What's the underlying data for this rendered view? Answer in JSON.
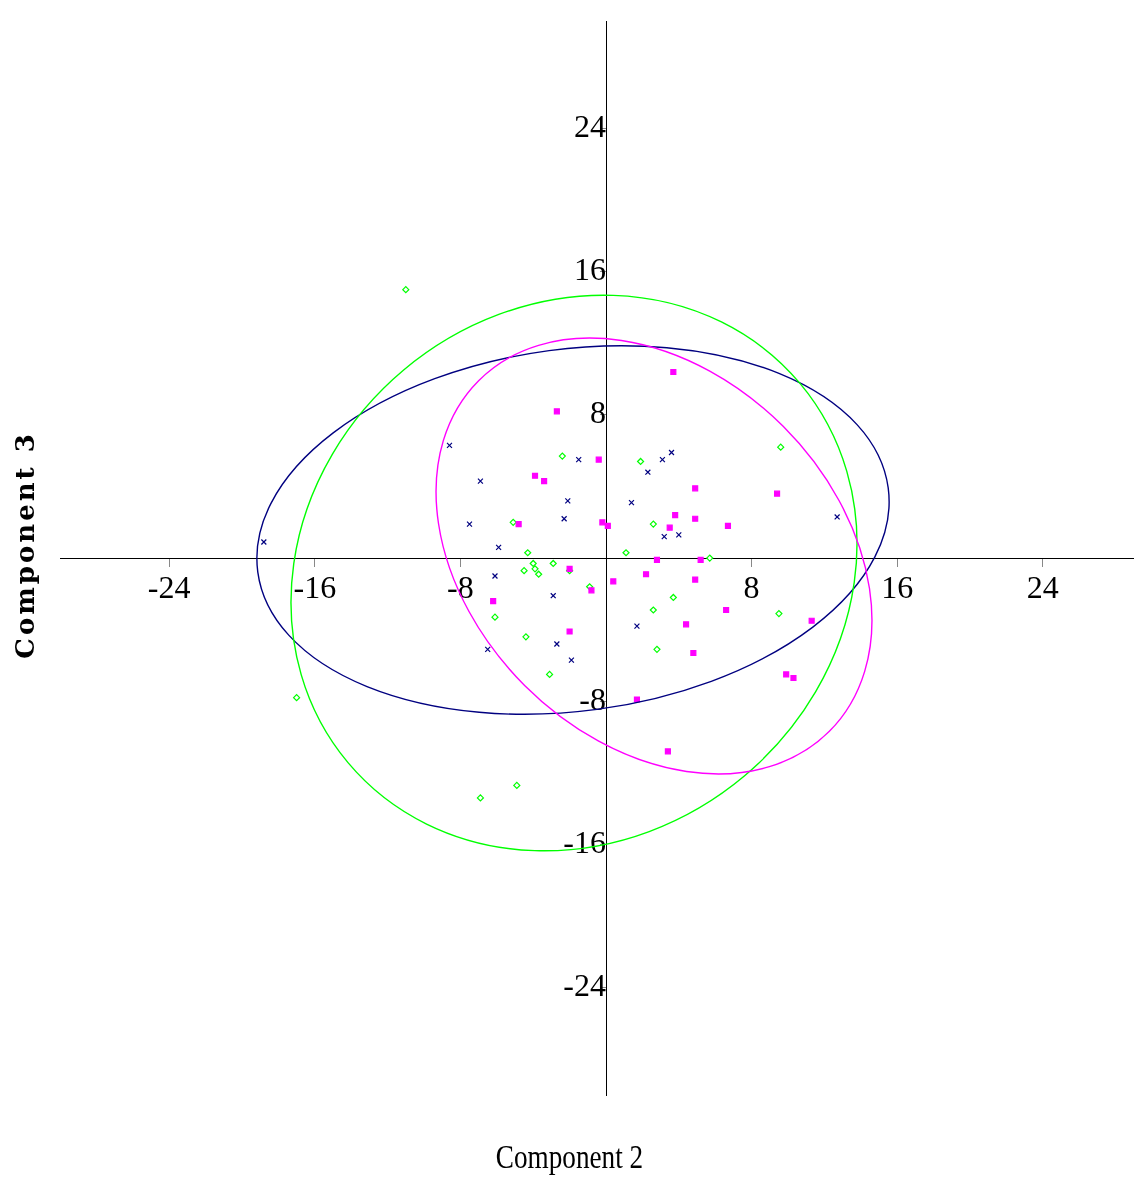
{
  "chart_data": {
    "type": "scatter",
    "xlabel": "Component 2",
    "ylabel": "Component 3",
    "xlim": [
      -30,
      29
    ],
    "ylim": [
      -30,
      30
    ],
    "xticks": [
      -24,
      -16,
      -8,
      8,
      16,
      24
    ],
    "yticks": [
      -24,
      -16,
      -8,
      8,
      16,
      24
    ],
    "grid": false,
    "legend": false,
    "series": [
      {
        "type": "scatter",
        "marker": "cross",
        "color": "#000080",
        "x": [
          -18.8,
          -8.6,
          -6.9,
          -7.5,
          -5.9,
          -6.1,
          -6.5,
          -2.1,
          -2.3,
          -1.5,
          -2.9,
          -2.7,
          -1.9,
          1.4,
          2.3,
          3.1,
          3.6,
          3.2,
          4.0,
          1.7,
          12.7
        ],
        "values": [
          0.9,
          6.3,
          4.3,
          1.9,
          0.6,
          -1.0,
          -5.1,
          3.2,
          2.2,
          5.5,
          -2.1,
          -4.8,
          -5.7,
          3.1,
          4.8,
          5.5,
          5.9,
          1.2,
          1.3,
          -3.8,
          2.3
        ]
      },
      {
        "type": "scatter",
        "marker": "square",
        "color": "#ff00ff",
        "x": [
          -2.7,
          -3.9,
          -3.4,
          -4.8,
          -0.4,
          -0.2,
          0.1,
          -2.0,
          -0.8,
          -6.2,
          -2.0,
          3.7,
          4.9,
          3.8,
          3.5,
          4.9,
          6.7,
          9.4,
          2.8,
          5.2,
          2.2,
          0.4,
          4.9,
          4.4,
          4.8,
          6.6,
          11.3,
          9.9,
          10.3,
          1.7,
          3.4
        ],
        "values": [
          8.2,
          4.6,
          4.3,
          1.9,
          5.5,
          2.0,
          1.8,
          -0.6,
          -1.8,
          -2.4,
          -4.1,
          10.4,
          3.9,
          2.4,
          1.7,
          2.2,
          1.8,
          3.6,
          -0.1,
          -0.1,
          -0.9,
          -1.3,
          -1.2,
          -3.7,
          -5.3,
          -2.9,
          -3.5,
          -6.5,
          -6.7,
          -7.9,
          -10.8
        ]
      },
      {
        "type": "scatter",
        "marker": "diamond",
        "color": "#00ff00",
        "x": [
          -11.0,
          -17.0,
          -6.9,
          -4.9,
          -2.4,
          -5.1,
          -4.3,
          -4.0,
          -3.9,
          -3.7,
          -4.5,
          -2.9,
          -2.0,
          -0.9,
          -6.1,
          -4.4,
          -3.1,
          1.9,
          2.6,
          1.1,
          5.7,
          3.7,
          2.6,
          2.8,
          9.6,
          9.5
        ],
        "values": [
          15.0,
          -7.8,
          -13.4,
          -12.7,
          5.7,
          2.0,
          0.3,
          -0.3,
          -0.6,
          -0.9,
          -0.7,
          -0.3,
          -0.7,
          -1.6,
          -3.3,
          -4.4,
          -6.5,
          5.4,
          1.9,
          0.3,
          0.0,
          -2.2,
          -2.9,
          -5.1,
          6.2,
          -3.1
        ]
      }
    ]
  }
}
